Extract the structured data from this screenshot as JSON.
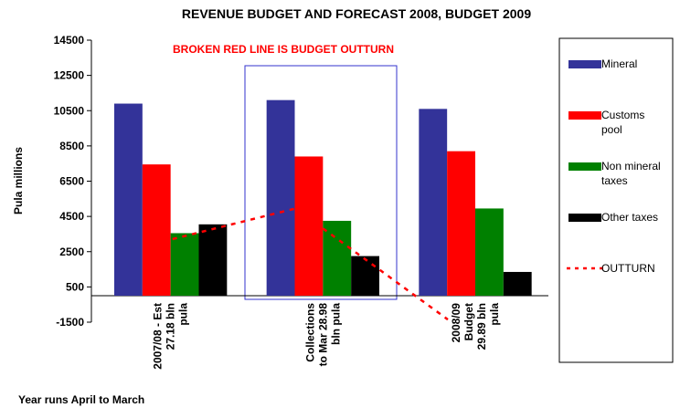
{
  "chart_data": {
    "type": "bar",
    "title": "REVENUE BUDGET AND FORECAST 2008, BUDGET 2009",
    "annotation": "BROKEN RED LINE IS BUDGET OUTTURN",
    "y_label": "Pula millions",
    "x_label": "Year runs April to March",
    "categories": [
      "2007/08 - Est\n27.18 bln\npula",
      "Collections\nto Mar 28.98\nbln pula",
      "2008/09\nBudget\n29.89 bln\npula"
    ],
    "series": [
      {
        "name": "Mineral",
        "color": "#333399",
        "values": [
          10900,
          11100,
          10600
        ]
      },
      {
        "name": "Customs pool",
        "color": "#ff0000",
        "values": [
          7450,
          7900,
          8200
        ]
      },
      {
        "name": "Non mineral taxes",
        "color": "#008000",
        "values": [
          3550,
          4250,
          4950
        ]
      },
      {
        "name": "Other taxes",
        "color": "#000000",
        "values": [
          4050,
          2250,
          1350
        ]
      },
      {
        "name": "OUTTURN",
        "type": "line",
        "color": "#ff0000",
        "dashed": true,
        "values": [
          2800,
          4950,
          -1350
        ]
      }
    ],
    "ylim": [
      -1500,
      14500
    ],
    "yticks": [
      -1500,
      500,
      2500,
      4500,
      6500,
      8500,
      10500,
      12500,
      14500
    ],
    "legend": "right"
  }
}
